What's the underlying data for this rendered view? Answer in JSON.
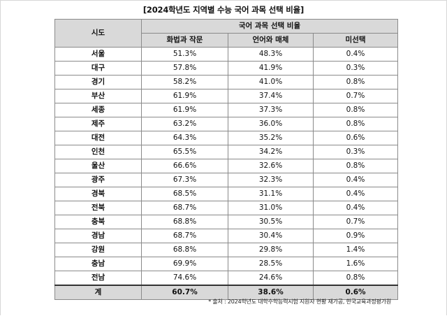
{
  "title": "[2024학년도 지역별 수능 국어 과목 선택 비율]",
  "table": {
    "region_header": "시도",
    "group_header": "국어 과목 선택 비율",
    "columns": [
      "화법과 작문",
      "언어와 매체",
      "미선택"
    ],
    "rows": [
      {
        "region": "서울",
        "values": [
          "51.3%",
          "48.3%",
          "0.4%"
        ]
      },
      {
        "region": "대구",
        "values": [
          "57.8%",
          "41.9%",
          "0.3%"
        ]
      },
      {
        "region": "경기",
        "values": [
          "58.2%",
          "41.0%",
          "0.8%"
        ]
      },
      {
        "region": "부산",
        "values": [
          "61.9%",
          "37.4%",
          "0.7%"
        ]
      },
      {
        "region": "세종",
        "values": [
          "61.9%",
          "37.3%",
          "0.8%"
        ]
      },
      {
        "region": "제주",
        "values": [
          "63.2%",
          "36.0%",
          "0.8%"
        ]
      },
      {
        "region": "대전",
        "values": [
          "64.3%",
          "35.2%",
          "0.6%"
        ]
      },
      {
        "region": "인천",
        "values": [
          "65.5%",
          "34.2%",
          "0.3%"
        ]
      },
      {
        "region": "울산",
        "values": [
          "66.6%",
          "32.6%",
          "0.8%"
        ]
      },
      {
        "region": "광주",
        "values": [
          "67.3%",
          "32.3%",
          "0.4%"
        ]
      },
      {
        "region": "경북",
        "values": [
          "68.5%",
          "31.1%",
          "0.4%"
        ]
      },
      {
        "region": "전북",
        "values": [
          "68.7%",
          "31.0%",
          "0.4%"
        ]
      },
      {
        "region": "충북",
        "values": [
          "68.8%",
          "30.5%",
          "0.7%"
        ]
      },
      {
        "region": "경남",
        "values": [
          "68.7%",
          "30.4%",
          "0.9%"
        ]
      },
      {
        "region": "강원",
        "values": [
          "68.8%",
          "29.8%",
          "1.4%"
        ]
      },
      {
        "region": "충남",
        "values": [
          "69.9%",
          "28.5%",
          "1.6%"
        ]
      },
      {
        "region": "전남",
        "values": [
          "74.6%",
          "24.6%",
          "0.8%"
        ]
      }
    ],
    "total": {
      "region": "계",
      "values": [
        "60.7%",
        "38.6%",
        "0.6%"
      ]
    }
  },
  "source": "* 출처 : 2024학년도 대학수학능력시험 지원자 현황 재가공, 한국교육과정평가원"
}
